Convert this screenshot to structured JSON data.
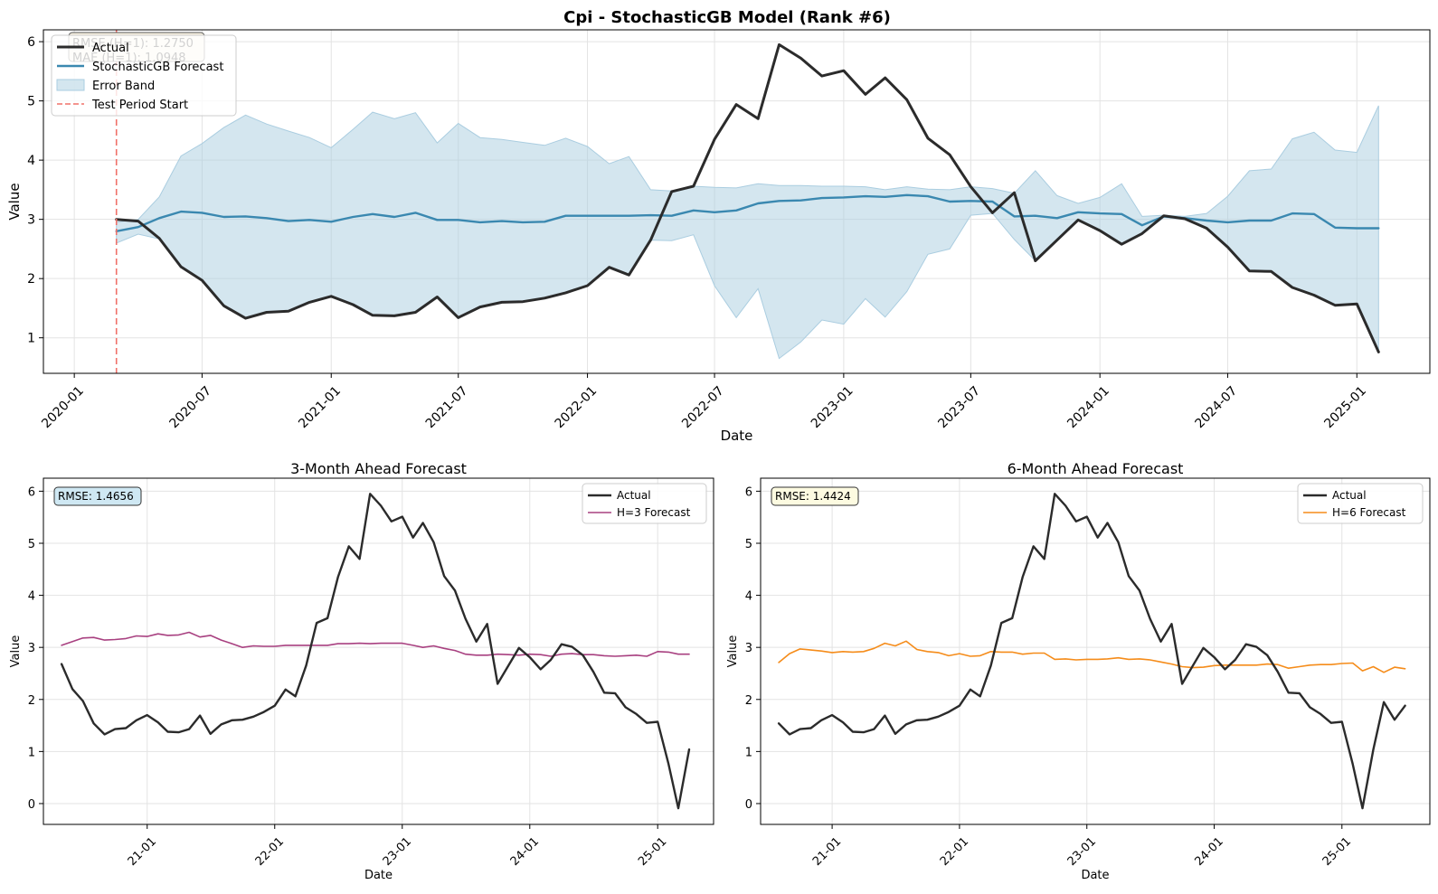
{
  "figure_title": "Cpi - StochasticGB Model (Rank #6)",
  "colors": {
    "actual": "#2b2b2b",
    "forecast": "#3a88b0",
    "band": "#aacde0",
    "test_line": "#f07068",
    "h3": "#a84080",
    "h6": "#f58c1a",
    "grid": "#e3e3e3"
  },
  "chart_data": [
    {
      "type": "line",
      "title": "Cpi - StochasticGB Model (Rank #6)",
      "xlabel": "Date",
      "ylabel": "Value",
      "xlim": [
        "2019-11-18",
        "2025-04-15"
      ],
      "ylim": [
        0.4,
        6.2
      ],
      "x_ticks": [
        "2020-01",
        "2020-07",
        "2021-01",
        "2021-07",
        "2022-01",
        "2022-07",
        "2023-01",
        "2023-07",
        "2024-01",
        "2024-07",
        "2025-01"
      ],
      "y_ticks": [
        1,
        2,
        3,
        4,
        5,
        6
      ],
      "grid": true,
      "legend_position": "upper-left",
      "annotation_lines": [
        "RMSE (H=1): 1.2750",
        "MAE (H=1): 1.0948"
      ],
      "vline": {
        "x": "2020-03",
        "name": "Test Period Start"
      },
      "x": [
        "2020-03",
        "2020-04",
        "2020-05",
        "2020-06",
        "2020-07",
        "2020-08",
        "2020-09",
        "2020-10",
        "2020-11",
        "2020-12",
        "2021-01",
        "2021-02",
        "2021-03",
        "2021-04",
        "2021-05",
        "2021-06",
        "2021-07",
        "2021-08",
        "2021-09",
        "2021-10",
        "2021-11",
        "2021-12",
        "2022-01",
        "2022-02",
        "2022-03",
        "2022-04",
        "2022-05",
        "2022-06",
        "2022-07",
        "2022-08",
        "2022-09",
        "2022-10",
        "2022-11",
        "2022-12",
        "2023-01",
        "2023-02",
        "2023-03",
        "2023-04",
        "2023-05",
        "2023-06",
        "2023-07",
        "2023-08",
        "2023-09",
        "2023-10",
        "2023-11",
        "2023-12",
        "2024-01",
        "2024-02",
        "2024-03",
        "2024-04",
        "2024-05",
        "2024-06",
        "2024-07",
        "2024-08",
        "2024-09",
        "2024-10",
        "2024-11",
        "2024-12",
        "2025-01",
        "2025-02"
      ],
      "series": [
        {
          "name": "Actual",
          "values": [
            3.0,
            2.97,
            2.68,
            2.2,
            1.97,
            1.54,
            1.33,
            1.43,
            1.45,
            1.6,
            1.7,
            1.56,
            1.38,
            1.37,
            1.43,
            1.69,
            1.34,
            1.52,
            1.6,
            1.61,
            1.67,
            1.76,
            1.88,
            2.19,
            2.06,
            2.65,
            3.47,
            3.56,
            4.35,
            4.94,
            4.7,
            5.95,
            5.72,
            5.42,
            5.51,
            5.11,
            5.39,
            5.02,
            4.37,
            4.09,
            3.55,
            3.11,
            3.45,
            2.3,
            2.65,
            2.99,
            2.81,
            2.58,
            2.76,
            3.06,
            3.01,
            2.85,
            2.53,
            2.13,
            2.12,
            1.85,
            1.72,
            1.55,
            1.57,
            0.76
          ]
        },
        {
          "name": "StochasticGB Forecast",
          "values": [
            2.8,
            2.87,
            3.02,
            3.13,
            3.11,
            3.04,
            3.05,
            3.02,
            2.97,
            2.99,
            2.96,
            3.04,
            3.09,
            3.04,
            3.11,
            2.99,
            2.99,
            2.95,
            2.97,
            2.95,
            2.96,
            3.06,
            3.06,
            3.06,
            3.06,
            3.07,
            3.06,
            3.15,
            3.12,
            3.15,
            3.27,
            3.31,
            3.32,
            3.36,
            3.37,
            3.39,
            3.38,
            3.41,
            3.39,
            3.3,
            3.31,
            3.3,
            3.05,
            3.06,
            3.02,
            3.12,
            3.1,
            3.09,
            2.9,
            3.05,
            3.02,
            2.98,
            2.95,
            2.98,
            2.98,
            3.1,
            3.09,
            2.86,
            2.85,
            2.85
          ]
        },
        {
          "name": "Error Band",
          "upper": [
            2.95,
            3.0,
            3.38,
            4.07,
            4.28,
            4.55,
            4.76,
            4.61,
            4.49,
            4.38,
            4.21,
            4.52,
            4.81,
            4.7,
            4.8,
            4.29,
            4.62,
            4.38,
            4.35,
            4.3,
            4.25,
            4.37,
            4.23,
            3.94,
            4.06,
            3.5,
            3.48,
            3.56,
            3.54,
            3.53,
            3.6,
            3.57,
            3.57,
            3.56,
            3.56,
            3.55,
            3.5,
            3.55,
            3.51,
            3.5,
            3.55,
            3.52,
            3.44,
            3.82,
            3.4,
            3.27,
            3.37,
            3.6,
            3.05,
            3.07,
            3.05,
            3.1,
            3.39,
            3.82,
            3.85,
            4.36,
            4.47,
            4.17,
            4.13,
            4.92
          ],
          "lower": [
            2.6,
            2.75,
            2.67,
            2.2,
            1.97,
            1.54,
            1.33,
            1.43,
            1.45,
            1.6,
            1.7,
            1.56,
            1.38,
            1.37,
            1.43,
            1.69,
            1.34,
            1.52,
            1.6,
            1.61,
            1.67,
            1.76,
            1.88,
            2.19,
            2.06,
            2.65,
            2.64,
            2.74,
            1.88,
            1.34,
            1.83,
            0.65,
            0.93,
            1.3,
            1.23,
            1.66,
            1.35,
            1.78,
            2.41,
            2.5,
            3.07,
            3.1,
            2.66,
            2.3,
            2.65,
            2.99,
            2.81,
            2.58,
            2.76,
            3.03,
            3.0,
            2.85,
            2.53,
            2.13,
            2.12,
            1.85,
            1.72,
            1.55,
            1.57,
            0.76
          ]
        }
      ]
    },
    {
      "type": "line",
      "title": "3-Month Ahead Forecast",
      "xlabel": "Date",
      "ylabel": "Value",
      "xlim": [
        "2020-03-10",
        "2025-06-10"
      ],
      "ylim": [
        -0.4,
        6.25
      ],
      "x_ticks": [
        "21-01",
        "22-01",
        "23-01",
        "24-01",
        "25-01"
      ],
      "y_ticks": [
        0,
        1,
        2,
        3,
        4,
        5,
        6
      ],
      "grid": true,
      "legend_position": "upper-right",
      "annotation": "RMSE: 1.4656",
      "x": [
        "2020-05",
        "2020-06",
        "2020-07",
        "2020-08",
        "2020-09",
        "2020-10",
        "2020-11",
        "2020-12",
        "2021-01",
        "2021-02",
        "2021-03",
        "2021-04",
        "2021-05",
        "2021-06",
        "2021-07",
        "2021-08",
        "2021-09",
        "2021-10",
        "2021-11",
        "2021-12",
        "2022-01",
        "2022-02",
        "2022-03",
        "2022-04",
        "2022-05",
        "2022-06",
        "2022-07",
        "2022-08",
        "2022-09",
        "2022-10",
        "2022-11",
        "2022-12",
        "2023-01",
        "2023-02",
        "2023-03",
        "2023-04",
        "2023-05",
        "2023-06",
        "2023-07",
        "2023-08",
        "2023-09",
        "2023-10",
        "2023-11",
        "2023-12",
        "2024-01",
        "2024-02",
        "2024-03",
        "2024-04",
        "2024-05",
        "2024-06",
        "2024-07",
        "2024-08",
        "2024-09",
        "2024-10",
        "2024-11",
        "2024-12",
        "2025-01",
        "2025-02",
        "2025-03",
        "2025-04"
      ],
      "series": [
        {
          "name": "Actual",
          "values": [
            2.68,
            2.2,
            1.97,
            1.54,
            1.33,
            1.43,
            1.45,
            1.6,
            1.7,
            1.56,
            1.38,
            1.37,
            1.43,
            1.69,
            1.34,
            1.52,
            1.6,
            1.61,
            1.67,
            1.76,
            1.88,
            2.19,
            2.06,
            2.65,
            3.47,
            3.56,
            4.35,
            4.94,
            4.7,
            5.95,
            5.72,
            5.42,
            5.51,
            5.11,
            5.39,
            5.02,
            4.37,
            4.09,
            3.55,
            3.11,
            3.45,
            2.3,
            2.65,
            2.99,
            2.81,
            2.58,
            2.76,
            3.06,
            3.01,
            2.85,
            2.53,
            2.13,
            2.12,
            1.85,
            1.72,
            1.55,
            1.57,
            0.76,
            -0.09,
            1.04
          ]
        },
        {
          "name": "H=3 Forecast",
          "values": [
            3.04,
            3.11,
            3.18,
            3.19,
            3.14,
            3.15,
            3.17,
            3.22,
            3.21,
            3.26,
            3.23,
            3.24,
            3.29,
            3.2,
            3.23,
            3.14,
            3.07,
            3.0,
            3.03,
            3.02,
            3.02,
            3.04,
            3.04,
            3.04,
            3.04,
            3.04,
            3.07,
            3.07,
            3.08,
            3.07,
            3.08,
            3.08,
            3.08,
            3.04,
            3.0,
            3.03,
            2.98,
            2.94,
            2.87,
            2.85,
            2.85,
            2.87,
            2.86,
            2.85,
            2.87,
            2.86,
            2.83,
            2.87,
            2.88,
            2.86,
            2.86,
            2.84,
            2.83,
            2.84,
            2.85,
            2.83,
            2.92,
            2.91,
            2.87,
            2.87
          ]
        }
      ]
    },
    {
      "type": "line",
      "title": "6-Month Ahead Forecast",
      "xlabel": "Date",
      "ylabel": "Value",
      "xlim": [
        "2020-06-10",
        "2025-09-10"
      ],
      "ylim": [
        -0.4,
        6.25
      ],
      "x_ticks": [
        "21-01",
        "22-01",
        "23-01",
        "24-01",
        "25-01"
      ],
      "y_ticks": [
        0,
        1,
        2,
        3,
        4,
        5,
        6
      ],
      "grid": true,
      "legend_position": "upper-right",
      "annotation": "RMSE: 1.4424",
      "x": [
        "2020-08",
        "2020-09",
        "2020-10",
        "2020-11",
        "2020-12",
        "2021-01",
        "2021-02",
        "2021-03",
        "2021-04",
        "2021-05",
        "2021-06",
        "2021-07",
        "2021-08",
        "2021-09",
        "2021-10",
        "2021-11",
        "2021-12",
        "2022-01",
        "2022-02",
        "2022-03",
        "2022-04",
        "2022-05",
        "2022-06",
        "2022-07",
        "2022-08",
        "2022-09",
        "2022-10",
        "2022-11",
        "2022-12",
        "2023-01",
        "2023-02",
        "2023-03",
        "2023-04",
        "2023-05",
        "2023-06",
        "2023-07",
        "2023-08",
        "2023-09",
        "2023-10",
        "2023-11",
        "2023-12",
        "2024-01",
        "2024-02",
        "2024-03",
        "2024-04",
        "2024-05",
        "2024-06",
        "2024-07",
        "2024-08",
        "2024-09",
        "2024-10",
        "2024-11",
        "2024-12",
        "2025-01",
        "2025-02",
        "2025-03",
        "2025-04",
        "2025-05",
        "2025-06",
        "2025-07"
      ],
      "series": [
        {
          "name": "Actual",
          "values": [
            1.54,
            1.33,
            1.43,
            1.45,
            1.6,
            1.7,
            1.56,
            1.38,
            1.37,
            1.43,
            1.69,
            1.34,
            1.52,
            1.6,
            1.61,
            1.67,
            1.76,
            1.88,
            2.19,
            2.06,
            2.65,
            3.47,
            3.56,
            4.35,
            4.94,
            4.7,
            5.95,
            5.72,
            5.42,
            5.51,
            5.11,
            5.39,
            5.02,
            4.37,
            4.09,
            3.55,
            3.11,
            3.45,
            2.3,
            2.65,
            2.99,
            2.81,
            2.58,
            2.76,
            3.06,
            3.01,
            2.85,
            2.53,
            2.13,
            2.12,
            1.85,
            1.72,
            1.55,
            1.57,
            0.76,
            -0.09,
            1.04,
            1.95,
            1.61,
            1.88
          ]
        },
        {
          "name": "H=6 Forecast",
          "values": [
            2.71,
            2.88,
            2.97,
            2.95,
            2.93,
            2.9,
            2.92,
            2.91,
            2.92,
            2.98,
            3.08,
            3.03,
            3.12,
            2.96,
            2.92,
            2.9,
            2.84,
            2.88,
            2.83,
            2.84,
            2.92,
            2.91,
            2.91,
            2.87,
            2.89,
            2.89,
            2.77,
            2.78,
            2.76,
            2.77,
            2.77,
            2.78,
            2.8,
            2.77,
            2.78,
            2.76,
            2.72,
            2.68,
            2.63,
            2.61,
            2.62,
            2.65,
            2.66,
            2.66,
            2.66,
            2.66,
            2.68,
            2.67,
            2.6,
            2.63,
            2.66,
            2.67,
            2.67,
            2.69,
            2.7,
            2.55,
            2.63,
            2.52,
            2.62,
            2.59
          ]
        }
      ]
    }
  ]
}
